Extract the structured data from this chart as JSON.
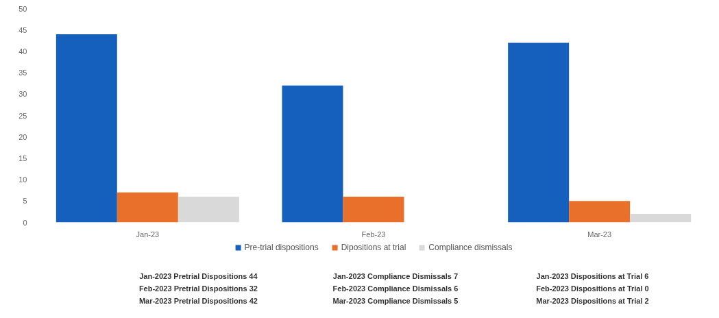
{
  "chart_data": {
    "type": "bar",
    "categories": [
      "Jan-23",
      "Feb-23",
      "Mar-23"
    ],
    "series": [
      {
        "name": "Pre-trial dispositions",
        "color": "#1560bd",
        "values": [
          44,
          32,
          42
        ]
      },
      {
        "name": "Dipositions at trial",
        "color": "#e8702a",
        "values": [
          7,
          6,
          5
        ]
      },
      {
        "name": "Compliance dismissals",
        "color": "#d9d9d9",
        "values": [
          6,
          0,
          2
        ]
      }
    ],
    "ylim": [
      0,
      50
    ],
    "yticks": [
      0,
      5,
      10,
      15,
      20,
      25,
      30,
      35,
      40,
      45,
      50
    ],
    "grid": false,
    "legend": "bottom",
    "annotations": [
      "Jan-2023 Pretrial Dispositions  44",
      "Feb-2023 Pretrial Dispositions  32",
      "Mar-2023 Pretrial Dispositions  42",
      "Jan-2023 Compliance Dismissals  7",
      "Feb-2023 Compliance Dismissals  6",
      "Mar-2023 Compliance Dismissals  5",
      "Jan-2023 Dispositions at Trial  6",
      "Feb-2023 Dispositions at Trial  0",
      "Mar-2023 Dispositions at Trial  2"
    ]
  }
}
